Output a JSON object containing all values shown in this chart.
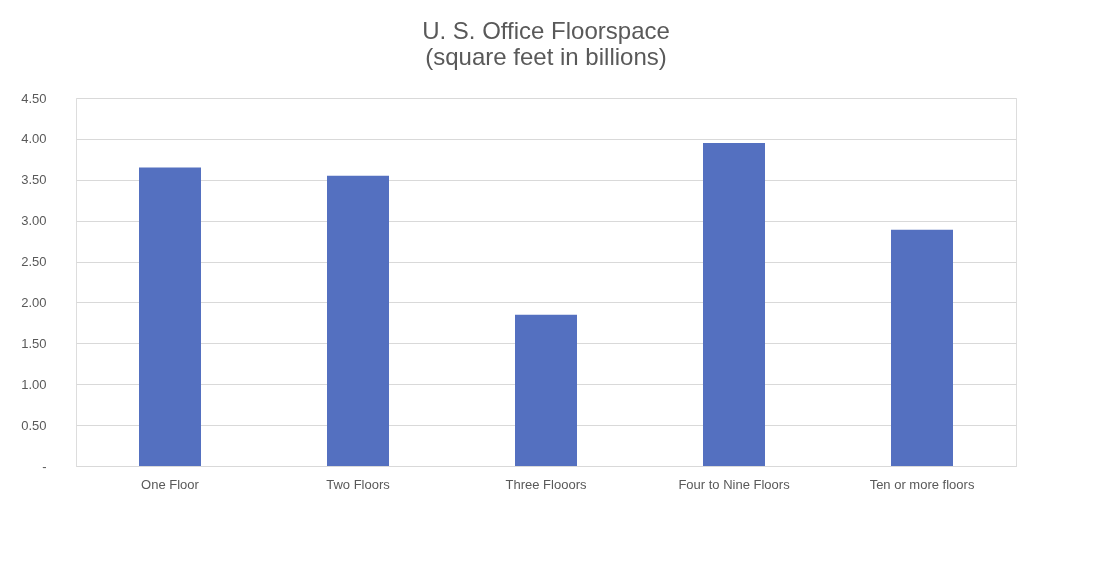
{
  "chart_data": {
    "type": "bar",
    "title": [
      "U. S. Office Floorspace",
      "(square feet in billions)"
    ],
    "categories": [
      "One Floor",
      "Two Floors",
      "Three Flooors",
      "Four to Nine Floors",
      "Ten or more floors"
    ],
    "values": [
      3.65,
      3.55,
      1.85,
      3.95,
      2.89
    ],
    "color": "#5470c0",
    "ylim": [
      0,
      4.5
    ],
    "yticks": [
      {
        "value": 0,
        "label": "-"
      },
      {
        "value": 0.5,
        "label": "0.50"
      },
      {
        "value": 1,
        "label": "1.00"
      },
      {
        "value": 1.5,
        "label": "1.50"
      },
      {
        "value": 2,
        "label": "2.00"
      },
      {
        "value": 2.5,
        "label": "2.50"
      },
      {
        "value": 3,
        "label": "3.00"
      },
      {
        "value": 3.5,
        "label": "3.50"
      },
      {
        "value": 4,
        "label": "4.00"
      },
      {
        "value": 4.5,
        "label": "4.50"
      }
    ],
    "grid": "y"
  }
}
